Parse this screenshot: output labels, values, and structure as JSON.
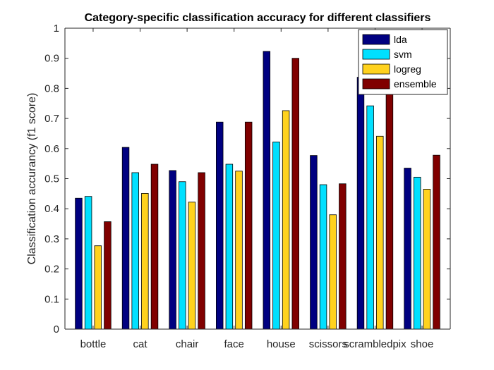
{
  "chart_data": {
    "type": "bar",
    "title": "Category-specific classification accuracy for different classifiers",
    "xlabel": "",
    "ylabel": "Classification accurancy (f1 score)",
    "ylim": [
      0,
      1
    ],
    "yticks": [
      0,
      0.1,
      0.2,
      0.3,
      0.4,
      0.5,
      0.6,
      0.7,
      0.8,
      0.9,
      1
    ],
    "ytick_labels": [
      "0",
      "0.1",
      "0.2",
      "0.3",
      "0.4",
      "0.5",
      "0.6",
      "0.7",
      "0.8",
      "0.9",
      "1"
    ],
    "categories": [
      "bottle",
      "cat",
      "chair",
      "face",
      "house",
      "scissors",
      "scrambledpix",
      "shoe"
    ],
    "legend_position": "top-right",
    "grid": false,
    "series": [
      {
        "name": "lda",
        "color": "#000080",
        "values": [
          0.435,
          0.604,
          0.527,
          0.688,
          0.923,
          0.577,
          0.837,
          0.535
        ]
      },
      {
        "name": "svm",
        "color": "#00E0FF",
        "values": [
          0.441,
          0.52,
          0.49,
          0.548,
          0.622,
          0.48,
          0.742,
          0.505
        ]
      },
      {
        "name": "logreg",
        "color": "#FFD21E",
        "values": [
          0.277,
          0.451,
          0.422,
          0.525,
          0.726,
          0.38,
          0.641,
          0.465
        ]
      },
      {
        "name": "ensemble",
        "color": "#800000",
        "values": [
          0.357,
          0.548,
          0.52,
          0.688,
          0.9,
          0.483,
          0.8,
          0.578
        ]
      }
    ]
  }
}
